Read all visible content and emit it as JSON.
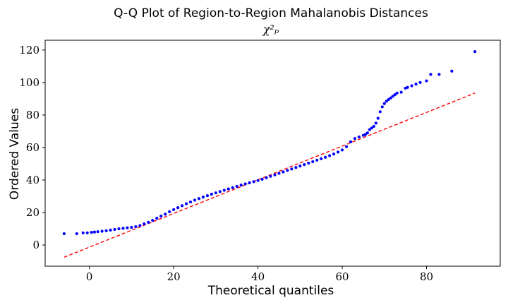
{
  "chart_data": {
    "type": "scatter",
    "title": "Q-Q Plot of Region-to-Region Mahalanobis Distances",
    "subtitle": "χ²ₚ",
    "xlabel": "Theoretical quantiles",
    "ylabel": "Ordered Values",
    "xlim": [
      -10.5,
      97.5
    ],
    "ylim": [
      -13,
      126
    ],
    "xticks": [
      0,
      20,
      40,
      60,
      80
    ],
    "yticks": [
      0,
      20,
      40,
      60,
      80,
      100,
      120
    ],
    "xtick_labels": [
      "0",
      "20",
      "40",
      "60",
      "80"
    ],
    "ytick_labels": [
      "0",
      "20",
      "40",
      "60",
      "80",
      "100",
      "120"
    ],
    "grid": false,
    "marker_color": "#0000ff",
    "line_color": "#ff0000",
    "reference_line": {
      "x": [
        -6,
        91.5
      ],
      "y": [
        -7.5,
        93.5
      ],
      "style": "dashed"
    },
    "series": [
      {
        "x": [
          -6,
          -3,
          -1.5,
          -0.5,
          0.5,
          1.2,
          2,
          3,
          4,
          5,
          6,
          7,
          8,
          9,
          10,
          11,
          12,
          13,
          14,
          15,
          16,
          17,
          18,
          19,
          20,
          21,
          22,
          23,
          24,
          25,
          26,
          27,
          28,
          29,
          30,
          31,
          32,
          33,
          34,
          35,
          36,
          37,
          38,
          39,
          40,
          41,
          42,
          43,
          44,
          45,
          46,
          47,
          48,
          49,
          50,
          51,
          52,
          53,
          54,
          55,
          56,
          57,
          58,
          59,
          60,
          61,
          62,
          63,
          64,
          65,
          65.5,
          66,
          66.5,
          67,
          67.5,
          68,
          68.5,
          69,
          69.5,
          70,
          70.5,
          71,
          71.5,
          72,
          72.5,
          73,
          74,
          75,
          75.5,
          76.5,
          77.5,
          78.5,
          80,
          81,
          83,
          86,
          91.5
        ],
        "y": [
          7,
          7,
          7.5,
          7.5,
          7.8,
          8,
          8.2,
          8.5,
          8.8,
          9.2,
          9.6,
          10,
          10.3,
          10.6,
          10.9,
          11.3,
          12,
          13,
          14,
          15.2,
          16.5,
          17.8,
          19,
          20.5,
          21.8,
          23,
          24.2,
          25.4,
          26.5,
          27.6,
          28.6,
          29.5,
          30.4,
          31.3,
          32.1,
          32.9,
          33.7,
          34.5,
          35.3,
          36.1,
          36.9,
          37.6,
          38.3,
          39,
          39.7,
          40.5,
          41.4,
          42.3,
          43.2,
          44.1,
          45,
          45.9,
          46.8,
          47.7,
          48.6,
          49.5,
          50.4,
          51.3,
          52.2,
          53.1,
          54,
          55,
          56,
          57.2,
          58.5,
          60.5,
          63.5,
          65.5,
          66.5,
          67.5,
          68,
          69,
          71,
          72,
          73,
          75,
          78,
          82,
          85,
          87,
          88.5,
          89.5,
          90.5,
          91.5,
          92.5,
          93.5,
          94,
          96.5,
          97,
          98,
          99,
          100,
          101,
          105,
          105,
          107,
          119
        ]
      }
    ]
  }
}
